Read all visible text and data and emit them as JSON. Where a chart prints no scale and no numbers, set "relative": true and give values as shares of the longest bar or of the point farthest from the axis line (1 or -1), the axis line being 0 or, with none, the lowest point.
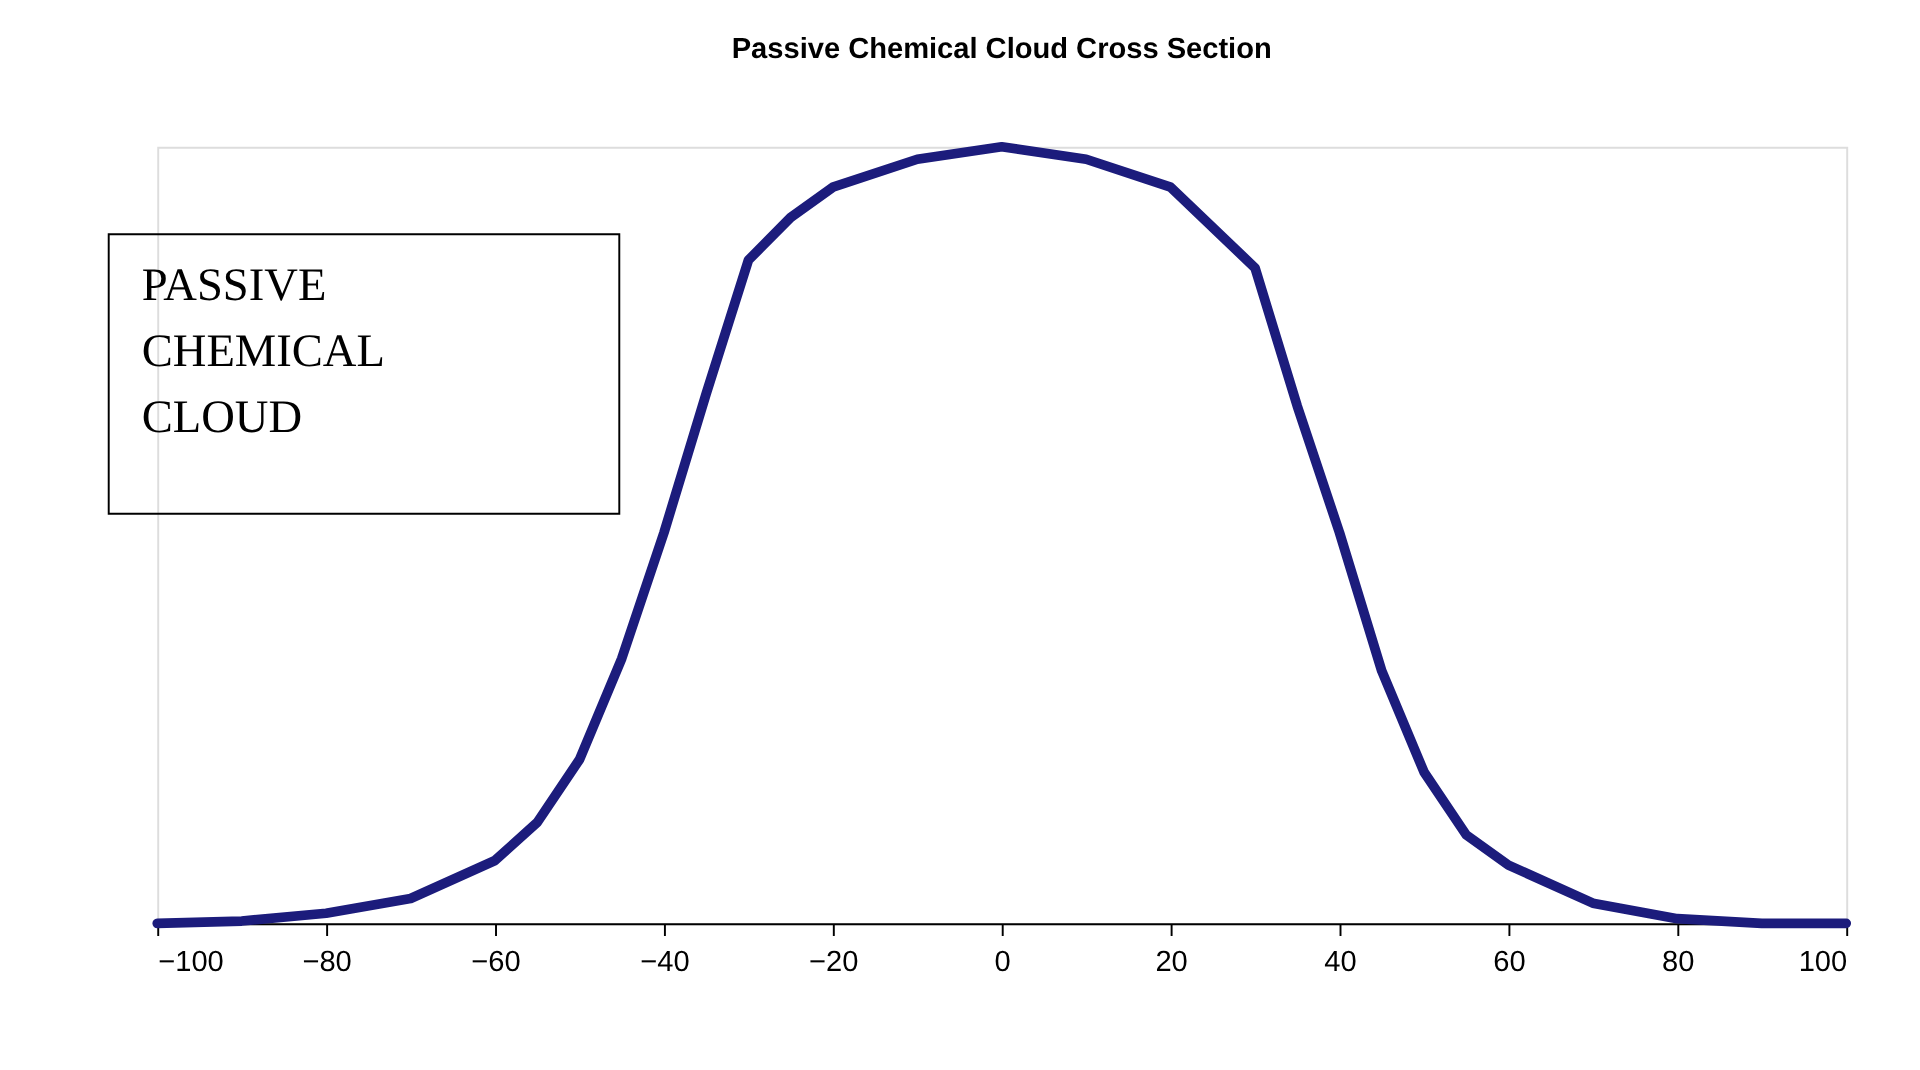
{
  "chart_data": {
    "type": "line",
    "title": "Passive Chemical Cloud Cross Section",
    "relative": true,
    "x": [
      -100,
      -90,
      -80,
      -70,
      -60,
      -55,
      -50,
      -45,
      -40,
      -35,
      -30,
      -25,
      -20,
      -10,
      0,
      10,
      20,
      30,
      35,
      40,
      45,
      50,
      55,
      60,
      70,
      80,
      90,
      100
    ],
    "series": [
      {
        "color": "#1c1c7c",
        "values": [
          0,
          0.003,
          0.013,
          0.032,
          0.081,
          0.13,
          0.211,
          0.341,
          0.503,
          0.682,
          0.854,
          0.909,
          0.948,
          0.984,
          1,
          0.984,
          0.948,
          0.844,
          0.666,
          0.503,
          0.325,
          0.195,
          0.114,
          0.075,
          0.026,
          0.006,
          0,
          0
        ]
      }
    ],
    "xlim": [
      -100,
      100
    ],
    "xticks": [
      -100,
      -80,
      -60,
      -40,
      -20,
      0,
      20,
      40,
      60,
      80,
      100
    ],
    "annotations": [
      "PASSIVE\nCHEMICAL\nCLOUD"
    ],
    "marker": "none",
    "line_style": "solid",
    "legend": false
  }
}
